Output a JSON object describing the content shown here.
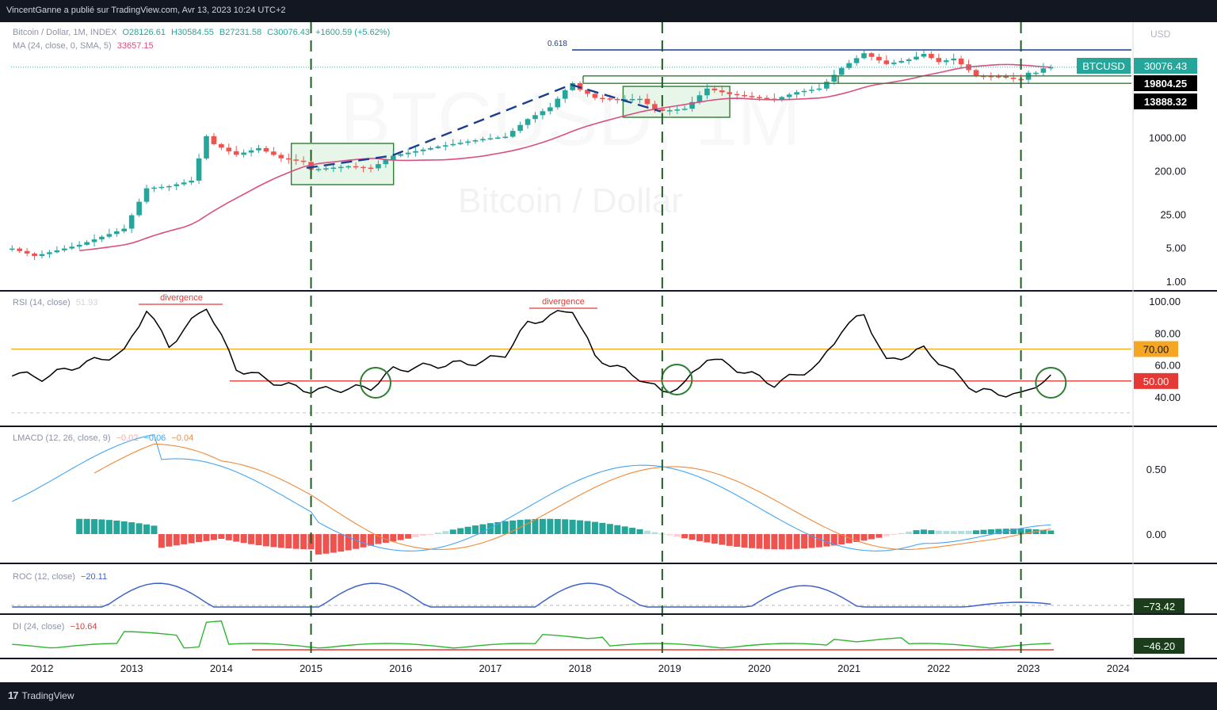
{
  "header": {
    "publisher": "VincentGanne a publié sur TradingView.com, Avr 13, 2023 10:24 UTC+2",
    "symbol_line": "Bitcoin / Dollar, 1M, INDEX",
    "ohlc": {
      "o": "O28126.61",
      "h": "H30584.55",
      "b": "B27231.58",
      "c": "C30076.43",
      "chg": "+1600.59 (+5.62%)"
    },
    "ma_label": "MA (24, close, 0, SMA, 5)",
    "ma_value": "33657.15"
  },
  "watermark": {
    "symbol": "BTCUSD, 1M",
    "name": "Bitcoin / Dollar"
  },
  "price_axis": {
    "currency": "USD",
    "ticks": [
      {
        "label": "1000.00",
        "value": 1000
      },
      {
        "label": "200.00",
        "value": 200
      },
      {
        "label": "25.00",
        "value": 25
      },
      {
        "label": "5.00",
        "value": 5
      },
      {
        "label": "1.00",
        "value": 1
      }
    ],
    "badges": [
      {
        "label": "BTCUSD",
        "color": "#26a69a"
      },
      {
        "label": "30076.43",
        "color": "#26a69a"
      },
      {
        "label": "19804.25",
        "color": "#000000"
      },
      {
        "label": "13888.32",
        "color": "#000000"
      }
    ]
  },
  "fib_label": "0.618",
  "rsi": {
    "label": "RSI (14, close)",
    "value": "51.93",
    "ticks": [
      {
        "label": "100.00",
        "value": 100
      },
      {
        "label": "80.00",
        "value": 80
      },
      {
        "label": "60.00",
        "value": 60
      },
      {
        "label": "40.00",
        "value": 40
      }
    ],
    "badge70": "70.00",
    "badge50": "50.00",
    "divergence_label": "divergence"
  },
  "lmacd": {
    "label": "LMACD (12, 26, close, 9)",
    "v1": "−0.02",
    "v2": "−0.06",
    "v3": "−0.04",
    "ticks": [
      {
        "label": "0.50",
        "value": 0.5
      },
      {
        "label": "0.00",
        "value": 0
      }
    ]
  },
  "roc": {
    "label": "ROC (12, close)",
    "value": "−20.11",
    "badge": "−73.42"
  },
  "di": {
    "label": "DI (24, close)",
    "value": "−10.64",
    "badge": "−46.20"
  },
  "time_axis": [
    "2012",
    "2013",
    "2014",
    "2015",
    "2016",
    "2017",
    "2018",
    "2019",
    "2020",
    "2021",
    "2022",
    "2023",
    "2024"
  ],
  "footer": {
    "brand": "TradingView"
  },
  "colors": {
    "up": "#26a69a",
    "down": "#ef5350",
    "ma": "#d94f7f",
    "rsi_line": "#000000",
    "rsi70": "#f5a623",
    "rsi50": "#e53935",
    "macd": "#42a5f5",
    "signal": "#ef8a3b",
    "roc": "#3f63c8",
    "di": "#2fb52f",
    "box": "#2e7d32",
    "vline": "#1b5e20",
    "fib": "#1a3d8f"
  },
  "chart_data": [
    {
      "type": "candlestick",
      "title": "Bitcoin / Dollar, 1M, INDEX",
      "y_scale": "log",
      "ylim": [
        1,
        100000
      ],
      "x_range": [
        "2011-09",
        "2023-04"
      ],
      "price_series_approx": [
        [
          "2011-09",
          5
        ],
        [
          "2011-12",
          3.5
        ],
        [
          "2012-06",
          6
        ],
        [
          "2012-12",
          13
        ],
        [
          "2013-03",
          90
        ],
        [
          "2013-06",
          100
        ],
        [
          "2013-09",
          130
        ],
        [
          "2013-11",
          1100
        ],
        [
          "2013-12",
          750
        ],
        [
          "2014-03",
          450
        ],
        [
          "2014-06",
          620
        ],
        [
          "2014-09",
          380
        ],
        [
          "2014-12",
          320
        ],
        [
          "2015-01",
          220
        ],
        [
          "2015-06",
          260
        ],
        [
          "2015-09",
          235
        ],
        [
          "2015-12",
          430
        ],
        [
          "2016-06",
          670
        ],
        [
          "2016-12",
          960
        ],
        [
          "2017-03",
          1070
        ],
        [
          "2017-06",
          2500
        ],
        [
          "2017-09",
          4400
        ],
        [
          "2017-11",
          10000
        ],
        [
          "2017-12",
          14000
        ],
        [
          "2018-01",
          10200
        ],
        [
          "2018-03",
          6900
        ],
        [
          "2018-06",
          6400
        ],
        [
          "2018-09",
          6600
        ],
        [
          "2018-11",
          4000
        ],
        [
          "2018-12",
          3700
        ],
        [
          "2019-03",
          4100
        ],
        [
          "2019-06",
          10800
        ],
        [
          "2019-09",
          8300
        ],
        [
          "2019-12",
          7200
        ],
        [
          "2020-03",
          6400
        ],
        [
          "2020-06",
          9100
        ],
        [
          "2020-09",
          10800
        ],
        [
          "2020-12",
          29000
        ],
        [
          "2021-03",
          58800
        ],
        [
          "2021-06",
          35000
        ],
        [
          "2021-09",
          43800
        ],
        [
          "2021-11",
          57000
        ],
        [
          "2022-01",
          38500
        ],
        [
          "2022-03",
          45500
        ],
        [
          "2022-06",
          19900
        ],
        [
          "2022-09",
          19400
        ],
        [
          "2022-11",
          17100
        ],
        [
          "2022-12",
          16500
        ],
        [
          "2023-01",
          23100
        ],
        [
          "2023-02",
          23100
        ],
        [
          "2023-03",
          28500
        ],
        [
          "2023-04",
          30076.43
        ]
      ],
      "ma_last": 33657.15,
      "horizontal_levels": [
        {
          "label": "19804.25",
          "value": 19804.25
        },
        {
          "label": "13888.32",
          "value": 13888.32
        },
        {
          "label": "0.618",
          "value": 69000
        }
      ],
      "vertical_markers": [
        "2015-01",
        "2018-12",
        "2022-12"
      ]
    },
    {
      "type": "line",
      "title": "RSI (14, close)",
      "ylim": [
        30,
        100
      ],
      "reference_lines": [
        70,
        50
      ],
      "series_approx": [
        [
          "2011-09",
          55
        ],
        [
          "2012-01",
          52
        ],
        [
          "2012-06",
          60
        ],
        [
          "2012-12",
          68
        ],
        [
          "2013-03",
          95
        ],
        [
          "2013-06",
          72
        ],
        [
          "2013-11",
          97
        ],
        [
          "2014-03",
          58
        ],
        [
          "2014-09",
          48
        ],
        [
          "2015-01",
          44
        ],
        [
          "2015-09",
          46
        ],
        [
          "2015-12",
          57
        ],
        [
          "2016-06",
          60
        ],
        [
          "2016-12",
          62
        ],
        [
          "2017-03",
          67
        ],
        [
          "2017-06",
          86
        ],
        [
          "2017-12",
          95
        ],
        [
          "2018-03",
          65
        ],
        [
          "2018-09",
          52
        ],
        [
          "2018-12",
          43
        ],
        [
          "2019-03",
          48
        ],
        [
          "2019-06",
          65
        ],
        [
          "2019-12",
          54
        ],
        [
          "2020-03",
          48
        ],
        [
          "2020-09",
          60
        ],
        [
          "2020-12",
          82
        ],
        [
          "2021-03",
          92
        ],
        [
          "2021-06",
          62
        ],
        [
          "2021-11",
          70
        ],
        [
          "2022-03",
          55
        ],
        [
          "2022-06",
          44
        ],
        [
          "2022-12",
          41
        ],
        [
          "2023-02",
          48
        ],
        [
          "2023-04",
          51.93
        ]
      ]
    },
    {
      "type": "bar+line",
      "title": "LMACD (12, 26, close, 9)",
      "ylim": [
        -0.15,
        0.85
      ],
      "last_values": [
        -0.02,
        -0.06,
        -0.04
      ]
    },
    {
      "type": "line",
      "title": "ROC (12, close)",
      "last_value": -20.11,
      "badge_value": -73.42
    },
    {
      "type": "line",
      "title": "DI (24, close)",
      "last_value": -10.64,
      "badge_value": -46.2
    }
  ]
}
